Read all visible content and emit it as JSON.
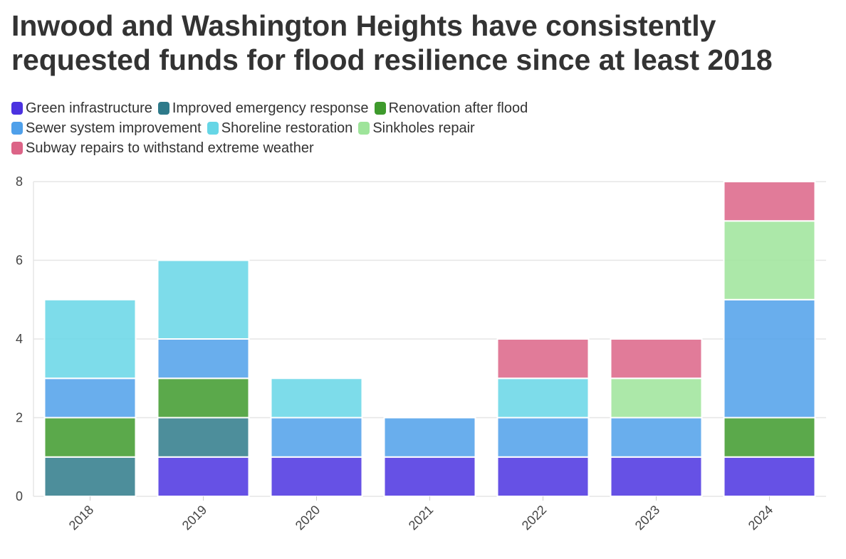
{
  "chart_data": {
    "type": "bar",
    "stacked": true,
    "title": "Inwood and Washington Heights have consistently requested funds for flood resilience since at least 2018",
    "xlabel": "",
    "ylabel": "",
    "categories": [
      "2018",
      "2019",
      "2020",
      "2021",
      "2022",
      "2023",
      "2024"
    ],
    "ylim": [
      0,
      8
    ],
    "yticks": [
      "0",
      "2",
      "4",
      "6",
      "8"
    ],
    "grid": true,
    "legend_position": "top-left",
    "series": [
      {
        "name": "Green infrastructure",
        "color": "#4b32e0",
        "values": [
          0,
          1,
          1,
          1,
          1,
          1,
          1
        ]
      },
      {
        "name": "Improved emergency response",
        "color": "#2e7a8a",
        "values": [
          1,
          1,
          0,
          0,
          0,
          0,
          0
        ]
      },
      {
        "name": "Renovation after flood",
        "color": "#3e9a2c",
        "values": [
          1,
          1,
          0,
          0,
          0,
          0,
          1
        ]
      },
      {
        "name": "Sewer system improvement",
        "color": "#4fa0ea",
        "values": [
          1,
          1,
          1,
          1,
          1,
          1,
          3
        ]
      },
      {
        "name": "Shoreline restoration",
        "color": "#66d6e6",
        "values": [
          2,
          2,
          1,
          0,
          1,
          0,
          0
        ]
      },
      {
        "name": "Sinkholes repair",
        "color": "#9ee49a",
        "values": [
          0,
          0,
          0,
          0,
          0,
          1,
          2
        ]
      },
      {
        "name": "Subway repairs to withstand extreme weather",
        "color": "#dc6487",
        "values": [
          0,
          0,
          0,
          0,
          1,
          1,
          1
        ]
      }
    ]
  }
}
